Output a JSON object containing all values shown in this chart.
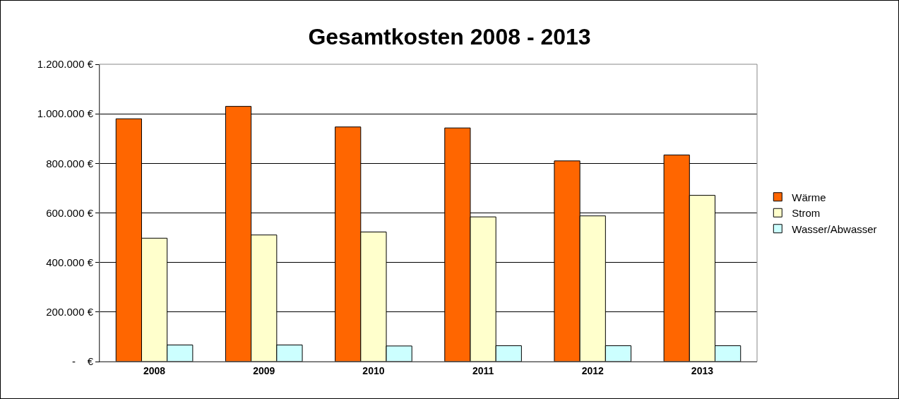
{
  "chart_data": {
    "type": "bar",
    "title": "Gesamtkosten 2008 - 2013",
    "categories": [
      "2008",
      "2009",
      "2010",
      "2011",
      "2012",
      "2013"
    ],
    "series": [
      {
        "name": "Wärme",
        "color": "#ff6600",
        "values": [
          980000,
          1030000,
          947000,
          943000,
          810000,
          834000
        ]
      },
      {
        "name": "Strom",
        "color": "#ffffcc",
        "values": [
          498000,
          511000,
          523000,
          584000,
          588000,
          671000
        ]
      },
      {
        "name": "Wasser/Abwasser",
        "color": "#ccffff",
        "values": [
          67000,
          67000,
          63000,
          64000,
          64000,
          64000
        ]
      }
    ],
    "ylim": [
      0,
      1200000
    ],
    "yticks": [
      {
        "value": 0,
        "label": "-    €"
      },
      {
        "value": 200000,
        "label": "200.000 €"
      },
      {
        "value": 400000,
        "label": "400.000 €"
      },
      {
        "value": 600000,
        "label": "600.000 €"
      },
      {
        "value": 800000,
        "label": "800.000 €"
      },
      {
        "value": 1000000,
        "label": "1.000.000 €"
      },
      {
        "value": 1200000,
        "label": "1.200.000 €"
      }
    ],
    "grid": "y",
    "legend": "right"
  }
}
